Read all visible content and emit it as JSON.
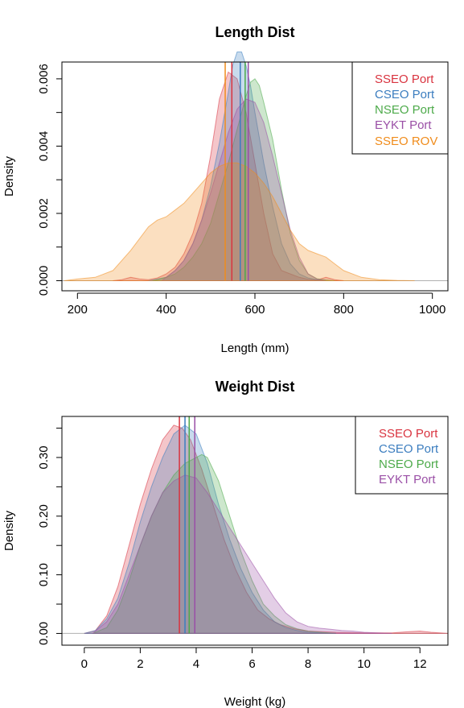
{
  "chart_data": [
    {
      "type": "area",
      "title": "Length Dist",
      "xlabel": "Length (mm)",
      "ylabel": "Density",
      "xlim": [
        165,
        1035
      ],
      "ylim": [
        -0.0003,
        0.0065
      ],
      "xticks": [
        200,
        400,
        600,
        800,
        1000
      ],
      "yticks": [
        0.0,
        0.002,
        0.004,
        0.006
      ],
      "ytick_labels": [
        "0.000",
        "0.002",
        "0.004",
        "0.006"
      ],
      "legend_position": "top-right",
      "series": [
        {
          "name": "SSEO Port",
          "color": "#d9333f",
          "mean": 548,
          "x": [
            280,
            300,
            320,
            340,
            360,
            380,
            400,
            420,
            440,
            460,
            480,
            500,
            520,
            540,
            560,
            580,
            600,
            620,
            640,
            660,
            680,
            700,
            720,
            740,
            760,
            780,
            800
          ],
          "y": [
            0.0,
            3e-05,
            0.0001,
            5e-05,
            3e-05,
            8e-05,
            0.0002,
            0.0004,
            0.0008,
            0.0014,
            0.0023,
            0.0037,
            0.0054,
            0.0062,
            0.006,
            0.005,
            0.0035,
            0.002,
            0.0008,
            0.0003,
            0.0002,
            0.0001,
            4e-05,
            2e-05,
            0.0001,
            3e-05,
            0.0
          ]
        },
        {
          "name": "CSEO Port",
          "color": "#3b7dbf",
          "mean": 567,
          "x": [
            360,
            400,
            420,
            440,
            460,
            480,
            500,
            520,
            540,
            550,
            560,
            570,
            580,
            590,
            600,
            620,
            640,
            660,
            680,
            700,
            720,
            740,
            760
          ],
          "y": [
            0.0,
            0.0001,
            0.0003,
            0.0006,
            0.0011,
            0.0018,
            0.0028,
            0.0041,
            0.0056,
            0.0064,
            0.0068,
            0.0068,
            0.0064,
            0.0058,
            0.005,
            0.0035,
            0.0022,
            0.0011,
            0.0005,
            0.0002,
            8e-05,
            3e-05,
            0.0
          ]
        },
        {
          "name": "NSEO Port",
          "color": "#4daa4a",
          "mean": 578,
          "x": [
            370,
            400,
            420,
            440,
            460,
            480,
            500,
            520,
            540,
            560,
            580,
            590,
            600,
            610,
            620,
            640,
            660,
            680,
            700,
            720,
            740,
            760,
            780
          ],
          "y": [
            0.0,
            0.0001,
            0.0002,
            0.0004,
            0.0007,
            0.0011,
            0.0017,
            0.0026,
            0.0035,
            0.0045,
            0.0055,
            0.0059,
            0.006,
            0.0058,
            0.0053,
            0.0042,
            0.0027,
            0.0014,
            0.0006,
            0.0002,
            6e-05,
            2e-05,
            0.0
          ]
        },
        {
          "name": "EYKT Port",
          "color": "#9a4fa6",
          "mean": 585,
          "x": [
            390,
            420,
            440,
            460,
            480,
            500,
            520,
            540,
            560,
            580,
            600,
            620,
            640,
            660,
            680,
            700,
            720,
            740,
            760
          ],
          "y": [
            0.0,
            0.0003,
            0.0006,
            0.0011,
            0.0018,
            0.0026,
            0.0035,
            0.0044,
            0.0051,
            0.0054,
            0.0053,
            0.0047,
            0.0037,
            0.0026,
            0.0015,
            0.0007,
            0.0002,
            5e-05,
            0.0
          ]
        },
        {
          "name": "SSEO ROV",
          "color": "#f08c1c",
          "mean": 533,
          "x": [
            170,
            200,
            240,
            280,
            320,
            360,
            380,
            400,
            420,
            440,
            460,
            480,
            500,
            520,
            540,
            560,
            580,
            600,
            620,
            640,
            660,
            680,
            700,
            720,
            740,
            760,
            780,
            800,
            840,
            880,
            920,
            960
          ],
          "y": [
            0.0,
            5e-05,
            0.0001,
            0.0003,
            0.0009,
            0.0016,
            0.0018,
            0.0019,
            0.0021,
            0.0023,
            0.0026,
            0.0029,
            0.0032,
            0.0034,
            0.0035,
            0.0035,
            0.0034,
            0.0032,
            0.0029,
            0.0025,
            0.002,
            0.0015,
            0.0011,
            0.0009,
            0.0008,
            0.0007,
            0.0005,
            0.0003,
            0.0001,
            3e-05,
            1e-05,
            0.0
          ]
        }
      ]
    },
    {
      "type": "area",
      "title": "Weight Dist",
      "xlabel": "Weight (kg)",
      "ylabel": "Density",
      "xlim": [
        -0.8,
        13.0
      ],
      "ylim": [
        -0.02,
        0.37
      ],
      "xticks": [
        0,
        2,
        4,
        6,
        8,
        10,
        12
      ],
      "yticks": [
        0.0,
        0.1,
        0.2,
        0.3
      ],
      "ytick_labels": [
        "0.00",
        "0.10",
        "0.20",
        "0.30"
      ],
      "legend_position": "top-right",
      "series": [
        {
          "name": "SSEO Port",
          "color": "#d9333f",
          "mean": 3.4,
          "x": [
            0.0,
            0.4,
            0.8,
            1.2,
            1.6,
            2.0,
            2.4,
            2.8,
            3.2,
            3.5,
            3.8,
            4.2,
            4.6,
            5.0,
            5.4,
            5.8,
            6.2,
            6.6,
            7.0,
            7.5,
            8.0,
            9.0,
            10.0,
            11.0,
            11.6,
            12.0,
            12.4,
            13.0
          ],
          "y": [
            0.0,
            0.005,
            0.03,
            0.08,
            0.15,
            0.22,
            0.28,
            0.33,
            0.355,
            0.35,
            0.33,
            0.28,
            0.22,
            0.16,
            0.11,
            0.07,
            0.04,
            0.025,
            0.015,
            0.008,
            0.004,
            0.002,
            0.001,
            0.001,
            0.003,
            0.004,
            0.002,
            0.0
          ]
        },
        {
          "name": "CSEO Port",
          "color": "#3b7dbf",
          "mean": 3.6,
          "x": [
            0.0,
            0.4,
            0.8,
            1.2,
            1.6,
            2.0,
            2.4,
            2.8,
            3.2,
            3.6,
            4.0,
            4.4,
            4.8,
            5.2,
            5.6,
            6.0,
            6.4,
            6.8,
            7.2,
            7.6,
            8.0,
            8.5,
            9.0
          ],
          "y": [
            0.0,
            0.005,
            0.025,
            0.06,
            0.12,
            0.19,
            0.25,
            0.3,
            0.34,
            0.355,
            0.34,
            0.29,
            0.22,
            0.16,
            0.11,
            0.07,
            0.04,
            0.02,
            0.01,
            0.005,
            0.002,
            0.001,
            0.0
          ]
        },
        {
          "name": "NSEO Port",
          "color": "#4daa4a",
          "mean": 3.75,
          "x": [
            0.3,
            0.8,
            1.2,
            1.6,
            2.0,
            2.4,
            2.8,
            3.2,
            3.6,
            4.0,
            4.2,
            4.4,
            4.8,
            5.2,
            5.6,
            6.0,
            6.4,
            6.8,
            7.2,
            7.6,
            8.0,
            8.5,
            9.0
          ],
          "y": [
            0.0,
            0.01,
            0.04,
            0.09,
            0.15,
            0.2,
            0.24,
            0.27,
            0.29,
            0.3,
            0.305,
            0.3,
            0.26,
            0.2,
            0.14,
            0.09,
            0.05,
            0.03,
            0.015,
            0.008,
            0.004,
            0.002,
            0.0
          ]
        },
        {
          "name": "EYKT Port",
          "color": "#9a4fa6",
          "mean": 3.95,
          "x": [
            0.3,
            0.8,
            1.2,
            1.6,
            2.0,
            2.4,
            2.8,
            3.2,
            3.6,
            4.0,
            4.4,
            4.8,
            5.2,
            5.6,
            6.0,
            6.4,
            6.8,
            7.2,
            7.6,
            8.0,
            8.4,
            8.8,
            9.2,
            9.6,
            10.0,
            10.5,
            11.0
          ],
          "y": [
            0.0,
            0.02,
            0.05,
            0.1,
            0.15,
            0.2,
            0.24,
            0.26,
            0.27,
            0.265,
            0.24,
            0.21,
            0.18,
            0.15,
            0.12,
            0.09,
            0.06,
            0.035,
            0.02,
            0.012,
            0.009,
            0.007,
            0.005,
            0.004,
            0.002,
            0.001,
            0.0
          ]
        }
      ]
    }
  ]
}
